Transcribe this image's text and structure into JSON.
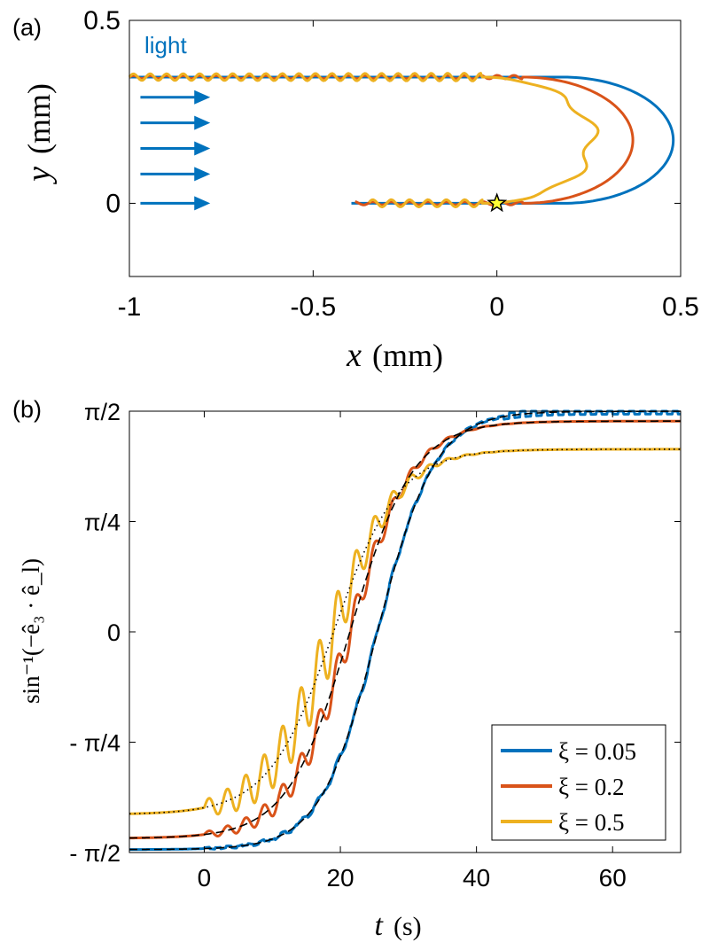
{
  "colors": {
    "blue": "#0072BD",
    "orange": "#D95319",
    "yellow": "#EDB120",
    "black": "#000000",
    "star": "#FFFF33"
  },
  "chart_data": [
    {
      "panel_label": "(a)",
      "type": "line",
      "xlabel_var": "x",
      "xlabel_unit": "(mm)",
      "ylabel_var": "y",
      "ylabel_unit": "(mm)",
      "xlim": [
        -1,
        0.5
      ],
      "ylim": [
        -0.2,
        0.5
      ],
      "xticks": [
        -1,
        -0.5,
        0,
        0.5
      ],
      "xtick_labels": [
        "-1",
        "-0.5",
        "0",
        "0.5"
      ],
      "yticks": [
        0,
        0.5
      ],
      "ytick_labels": [
        "0",
        "0.5"
      ],
      "annotation": "light",
      "light_arrows_y": [
        0.29,
        0.22,
        0.15,
        0.08,
        0.0
      ],
      "light_arrows_x": [
        -0.97,
        -0.78
      ],
      "start_marker": {
        "x": 0,
        "y": 0
      },
      "series": [
        {
          "name": "ξ = 0.05",
          "color": "blue",
          "turn_x": 0.48,
          "x_start": -0.4,
          "top_y": 0.345,
          "wiggle_amplitude": 0.0
        },
        {
          "name": "ξ = 0.2",
          "color": "orange",
          "turn_x": 0.37,
          "x_start": -0.39,
          "top_y": 0.345,
          "wiggle_amplitude": 0.004
        },
        {
          "name": "ξ = 0.5",
          "color": "yellow",
          "turn_x": 0.26,
          "x_start": -0.35,
          "top_y": 0.345,
          "wiggle_amplitude": 0.009
        }
      ]
    },
    {
      "panel_label": "(b)",
      "type": "line",
      "xlabel_var": "t",
      "xlabel_unit": "(s)",
      "ylabel": "sin⁻¹(−ê₃ · ê_l)",
      "xlim": [
        -11,
        70
      ],
      "ylim": [
        -1.5708,
        1.5708
      ],
      "xticks": [
        0,
        20,
        40,
        60
      ],
      "xtick_labels": [
        "0",
        "20",
        "40",
        "60"
      ],
      "yticks": [
        -1.5708,
        -0.7854,
        0,
        0.7854,
        1.5708
      ],
      "ytick_labels": [
        "- π/2",
        "- π/4",
        "0",
        "π/4",
        "π/2"
      ],
      "legend_position": "bottom-right",
      "series": [
        {
          "name": "ξ = 0.05",
          "color": "blue",
          "start": -1.55,
          "end": 1.57,
          "t_mid": 25.5,
          "tau": 4.2,
          "oscillation": 0.02,
          "fit_style": "dashed"
        },
        {
          "name": "ξ = 0.2",
          "color": "orange",
          "start": -1.47,
          "end": 1.5,
          "t_mid": 21.5,
          "tau": 4.6,
          "oscillation": 0.09,
          "fit_style": "dashed"
        },
        {
          "name": "ξ = 0.5",
          "color": "yellow",
          "start": -1.3,
          "end": 1.3,
          "t_mid": 19.0,
          "tau": 4.8,
          "oscillation": 0.17,
          "fit_style": "dotted"
        }
      ]
    }
  ]
}
